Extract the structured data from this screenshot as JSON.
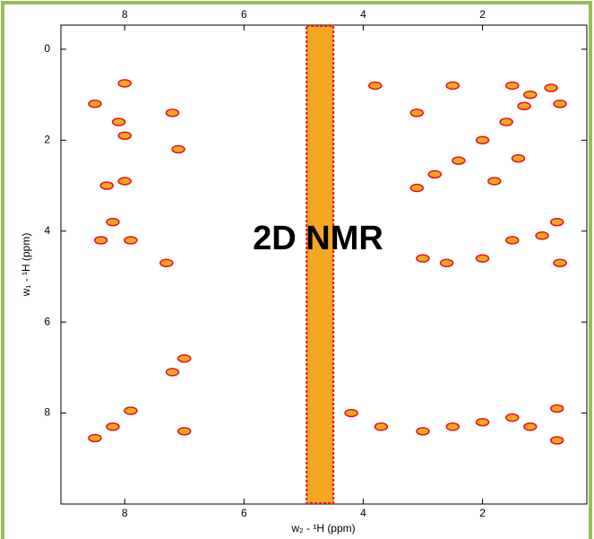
{
  "chart_data": {
    "type": "scatter",
    "annotation": "2D NMR",
    "x_label": "w₂ - ¹H  (ppm)",
    "y_label": "w₁ - ¹H  (ppm)",
    "xlim": [
      9.07,
      0.25
    ],
    "ylim": [
      -0.53,
      10
    ],
    "xticks": [
      8,
      6,
      4,
      2
    ],
    "yticks": [
      0,
      2,
      4,
      6,
      8
    ],
    "color": "#f5a623",
    "edge_color": "#e8101a",
    "solvent_band": [
      4.5,
      4.95
    ],
    "x": [
      8.5,
      8.2,
      7.9,
      7.2,
      7.0,
      3.1,
      2.8,
      2.4,
      2.0,
      1.6,
      1.3,
      0.85,
      8.5,
      8.0,
      8.1,
      8.0,
      8.3,
      8.0,
      8.4,
      8.2,
      7.9,
      7.3,
      7.1,
      7.2,
      3.0,
      2.5,
      2.0,
      1.5,
      1.2,
      0.75,
      0.75,
      3.0,
      2.6,
      2.0,
      1.5,
      1.0,
      0.75,
      0.7,
      3.1,
      2.5,
      1.5,
      1.2,
      1.8,
      1.4,
      0.7,
      3.8,
      3.7,
      4.2,
      7.0
    ],
    "y": [
      8.55,
      8.3,
      7.95,
      7.1,
      6.8,
      3.05,
      2.75,
      2.45,
      2.0,
      1.6,
      1.25,
      0.85,
      1.2,
      0.75,
      1.6,
      1.9,
      3.0,
      2.9,
      4.2,
      3.8,
      4.2,
      4.7,
      2.2,
      1.4,
      8.4,
      8.3,
      8.2,
      8.1,
      8.3,
      7.9,
      8.6,
      4.6,
      4.7,
      4.6,
      4.2,
      4.1,
      3.8,
      4.7,
      1.4,
      0.8,
      0.8,
      1.0,
      2.9,
      2.4,
      1.2,
      0.8,
      8.3,
      8.0,
      8.4
    ]
  }
}
